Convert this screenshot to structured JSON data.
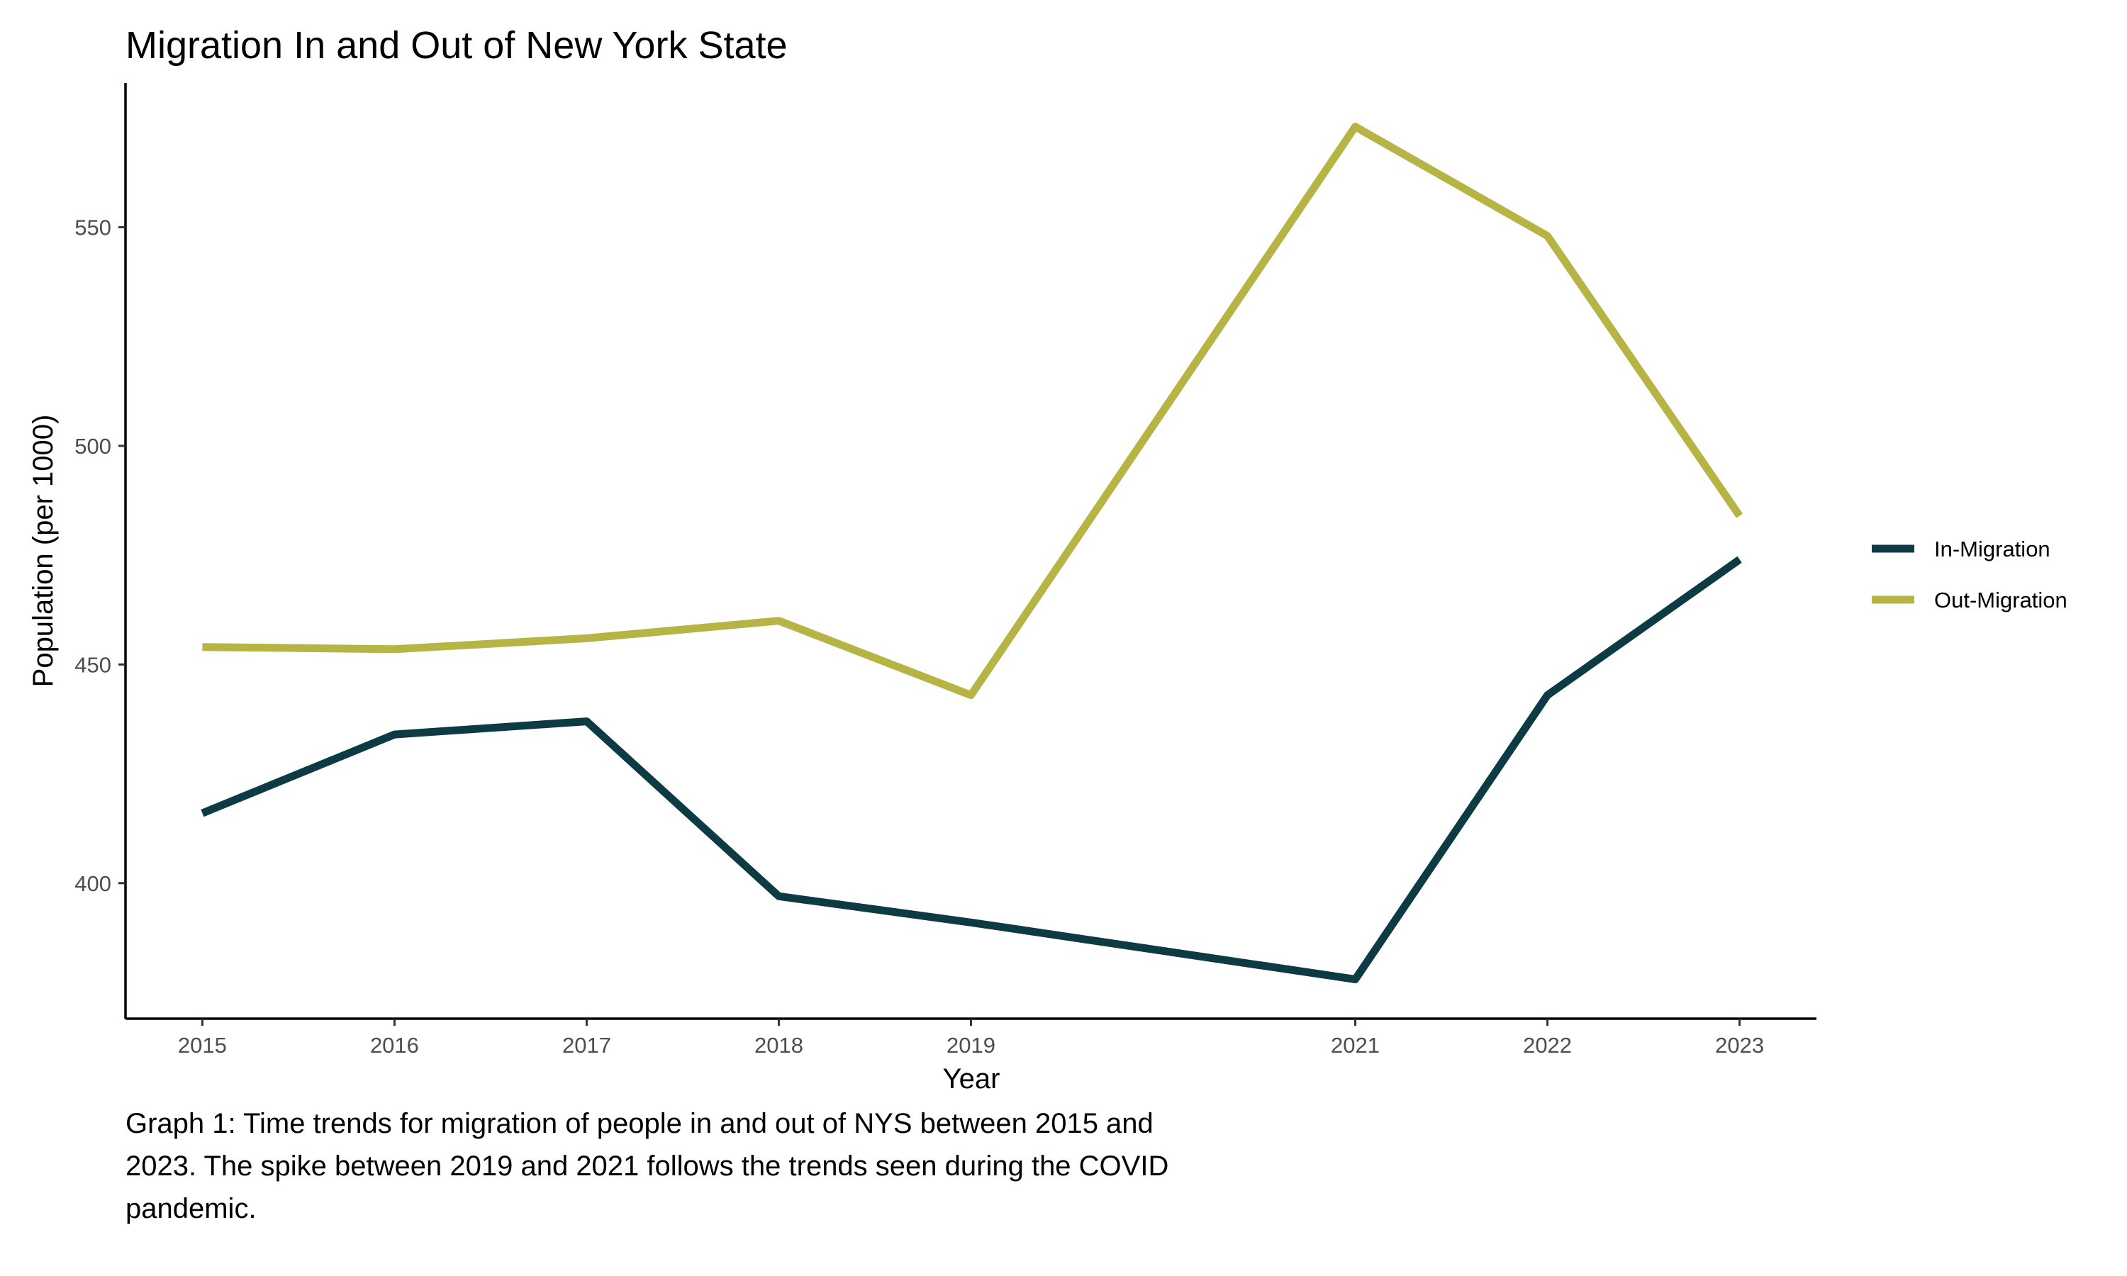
{
  "chart_data": {
    "type": "line",
    "title": "Migration In and Out of New York State",
    "xlabel": "Year",
    "ylabel": "Population (per 1000)",
    "x": [
      2015,
      2016,
      2017,
      2018,
      2019,
      2021,
      2022,
      2023
    ],
    "xlim": [
      2014.6,
      2023.4
    ],
    "ylim": [
      369,
      583
    ],
    "yticks": [
      400,
      450,
      500,
      550
    ],
    "grid": false,
    "legend_position": "right",
    "series": [
      {
        "name": "In-Migration",
        "color": "#0d3b44",
        "values": [
          416,
          434,
          437,
          397,
          391,
          378,
          443,
          474
        ]
      },
      {
        "name": "Out-Migration",
        "color": "#b5b444",
        "values": [
          454,
          453.5,
          456,
          460,
          443,
          573,
          548,
          484
        ]
      }
    ]
  },
  "caption": "Graph 1: Time trends for migration of people in and out of NYS between 2015 and 2023. The spike between 2019 and 2021 follows the trends seen during the COVID pandemic."
}
